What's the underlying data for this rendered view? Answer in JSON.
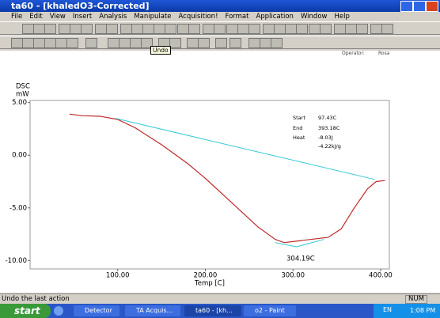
{
  "window": {
    "title": "ta60 - [khaledO3-Corrected]"
  },
  "menu": [
    "File",
    "Edit",
    "View",
    "Insert",
    "Analysis",
    "Manipulate",
    "Acquisition!",
    "Format",
    "Application",
    "Window",
    "Help"
  ],
  "tooltip": "Undo",
  "header": {
    "operator_label": "Operator:",
    "operator": "Rosa"
  },
  "chart": {
    "type": "line",
    "ylabel": "DSC",
    "yunit": "mW",
    "xlabel": "Temp [C]",
    "xlim": [
      0,
      410
    ],
    "ylim": [
      -10.8,
      5.2
    ],
    "xticks": [
      {
        "value": 100,
        "label": "100.00"
      },
      {
        "value": 200,
        "label": "200.00"
      },
      {
        "value": 300,
        "label": "300.00"
      },
      {
        "value": 400,
        "label": "400.00"
      }
    ],
    "yticks": [
      {
        "value": 5,
        "label": "5.00"
      },
      {
        "value": 0,
        "label": "0.00"
      },
      {
        "value": -5,
        "label": "-5.00"
      },
      {
        "value": -10,
        "label": "-10.00"
      }
    ],
    "series": [
      {
        "color": "#c0282a",
        "x": [
          45,
          60,
          80,
          100,
          120,
          150,
          180,
          200,
          230,
          260,
          280,
          290,
          300,
          320,
          340,
          355,
          370,
          385,
          395,
          405
        ],
        "y": [
          3.9,
          3.75,
          3.7,
          3.4,
          2.6,
          1.0,
          -0.8,
          -2.2,
          -4.5,
          -6.8,
          -8.0,
          -8.3,
          -8.2,
          -8.0,
          -7.8,
          -7.0,
          -5.0,
          -3.2,
          -2.5,
          -2.4
        ]
      },
      {
        "color": "#33c8d8",
        "x": [
          97.43,
          393.18
        ],
        "y": [
          3.5,
          -2.3
        ]
      },
      {
        "color": "#33c8d8",
        "x": [
          280,
          304.19,
          335
        ],
        "y": [
          -8.3,
          -8.7,
          -8.0
        ]
      }
    ],
    "annotations": {
      "start_label": "Start",
      "start": "97.43C",
      "end_label": "End",
      "end": "393.18C",
      "heat_label": "Heat",
      "heat": "-8.03J",
      "heat_per_g": "-4.22kJ/g",
      "peak": "304.19C"
    }
  },
  "statusbar": {
    "message": "Undo the last action",
    "num": "NUM"
  },
  "taskbar": {
    "start": "start",
    "buttons": [
      "Detector",
      "TA Acquis...",
      "ta60 - [kh...",
      "o2 - Paint"
    ],
    "lang": "EN",
    "clock": "1:08 PM"
  }
}
